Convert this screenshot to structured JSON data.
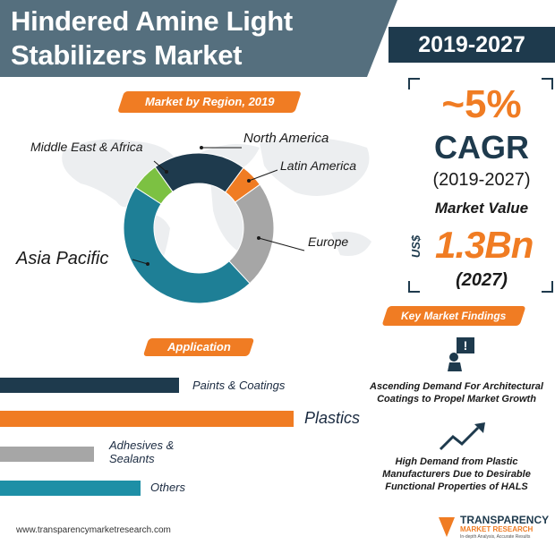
{
  "header": {
    "title_line_1": "Hindered Amine Light",
    "title_line_2": "Stabilizers Market",
    "period": "2019-2027"
  },
  "region": {
    "heading": "Market by Region, 2019",
    "segments": [
      {
        "name": "North America",
        "share": 0.2,
        "color": "#1e3a4d"
      },
      {
        "name": "Latin America",
        "share": 0.05,
        "color": "#f07c23"
      },
      {
        "name": "Europe",
        "share": 0.23,
        "color": "#a6a6a6"
      },
      {
        "name": "Asia Pacific",
        "share": 0.46,
        "color": "#1e7f96"
      },
      {
        "name": "Middle East & Africa",
        "share": 0.06,
        "color": "#7cc142"
      }
    ]
  },
  "stats": {
    "cagr_value": "~5%",
    "cagr_label": "CAGR",
    "cagr_period": "(2019-2027)",
    "market_value_label": "Market Value",
    "currency": "US$",
    "market_value": "1.3Bn",
    "market_value_year": "(2027)"
  },
  "application": {
    "heading": "Application",
    "items": [
      {
        "label": "Paints & Coatings",
        "value": 0.61,
        "color": "#1e3a4d"
      },
      {
        "label": "Plastics",
        "value": 1.0,
        "color": "#f07c23"
      },
      {
        "label": "Adhesives & Sealants",
        "value": 0.32,
        "color": "#a6a6a6"
      },
      {
        "label": "Others",
        "value": 0.48,
        "color": "#1e8fa6"
      }
    ]
  },
  "findings": {
    "heading": "Key Market Findings",
    "items": [
      {
        "text": "Ascending Demand For Architectural Coatings to Propel Market Growth",
        "icon": "warning-sign-icon"
      },
      {
        "text": "High Demand from Plastic Manufacturers Due to Desirable Functional Properties of HALS",
        "icon": "trend-up-icon"
      }
    ]
  },
  "footer": {
    "url": "www.transparencymarketresearch.com",
    "brand_line_1": "TRANSPARENCY",
    "brand_line_2": "MARKET RESEARCH",
    "brand_tagline": "In-depth Analysis, Accurate Results"
  }
}
